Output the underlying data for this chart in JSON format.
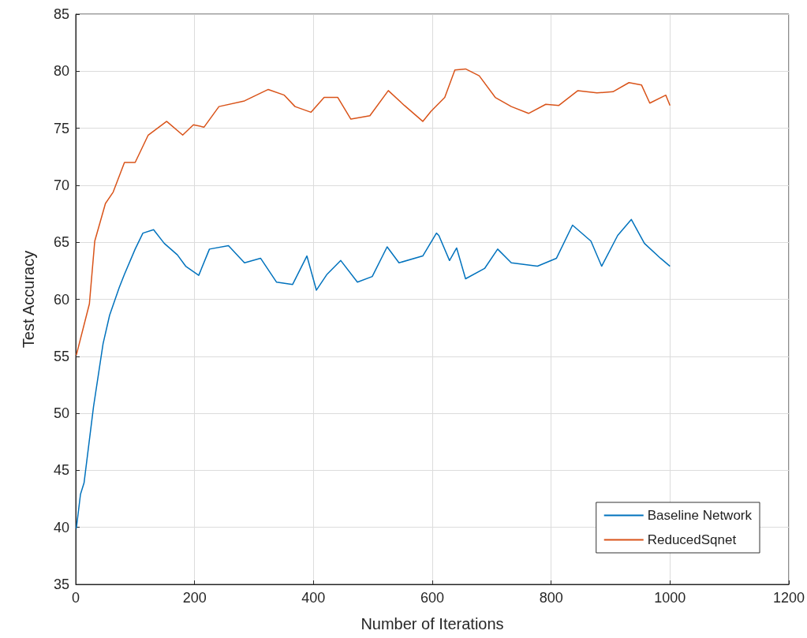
{
  "chart_data": {
    "type": "line",
    "xlabel": "Number of Iterations",
    "ylabel": "Test Accuracy",
    "xlim": [
      0,
      1200
    ],
    "xticks": [
      0,
      200,
      400,
      600,
      800,
      1000,
      1200
    ],
    "ylim": [
      35,
      85
    ],
    "yticks": [
      35,
      40,
      45,
      50,
      55,
      60,
      65,
      70,
      75,
      80,
      85
    ],
    "grid": true,
    "legend": "bottom right",
    "marker": "none",
    "line_style": "solid",
    "series": [
      {
        "name": "Baseline Network",
        "color": "#0072bd",
        "x": [
          1,
          8,
          14,
          30,
          46,
          57,
          73,
          82,
          100,
          113,
          131,
          149,
          171,
          185,
          207,
          225,
          257,
          284,
          311,
          338,
          365,
          389,
          405,
          423,
          446,
          474,
          499,
          524,
          544,
          584,
          607,
          611,
          629,
          641,
          656,
          688,
          710,
          733,
          777,
          809,
          836,
          867,
          885,
          912,
          935,
          957,
          984,
          1000
        ],
        "values": [
          39.9,
          42.9,
          43.9,
          50.6,
          56.1,
          58.6,
          61,
          62.2,
          64.4,
          65.8,
          66.1,
          64.9,
          63.9,
          62.9,
          62.1,
          64.4,
          64.7,
          63.2,
          63.6,
          61.5,
          61.3,
          63.8,
          60.8,
          62.2,
          63.4,
          61.5,
          62,
          64.6,
          63.2,
          63.8,
          65.8,
          65.6,
          63.4,
          64.5,
          61.8,
          62.7,
          64.4,
          63.2,
          62.9,
          63.6,
          66.5,
          65.1,
          62.9,
          65.6,
          67,
          64.9,
          63.6,
          62.9
        ]
      },
      {
        "name": "ReducedSqnet",
        "color": "#d95319",
        "x": [
          1,
          23,
          32,
          50,
          63,
          82,
          100,
          122,
          153,
          180,
          198,
          216,
          241,
          284,
          324,
          351,
          369,
          396,
          418,
          441,
          463,
          495,
          526,
          553,
          584,
          598,
          621,
          638,
          656,
          679,
          706,
          733,
          762,
          791,
          813,
          845,
          877,
          904,
          931,
          952,
          966,
          993,
          1000
        ],
        "values": [
          55.1,
          59.6,
          65.1,
          68.4,
          69.4,
          72,
          72,
          74.4,
          75.6,
          74.4,
          75.3,
          75.1,
          76.9,
          77.4,
          78.4,
          77.9,
          76.9,
          76.4,
          77.7,
          77.7,
          75.8,
          76.1,
          78.3,
          77,
          75.6,
          76.5,
          77.7,
          80.1,
          80.2,
          79.6,
          77.7,
          76.9,
          76.3,
          77.1,
          77,
          78.3,
          78.1,
          78.2,
          79,
          78.8,
          77.2,
          77.9,
          77
        ]
      }
    ]
  }
}
